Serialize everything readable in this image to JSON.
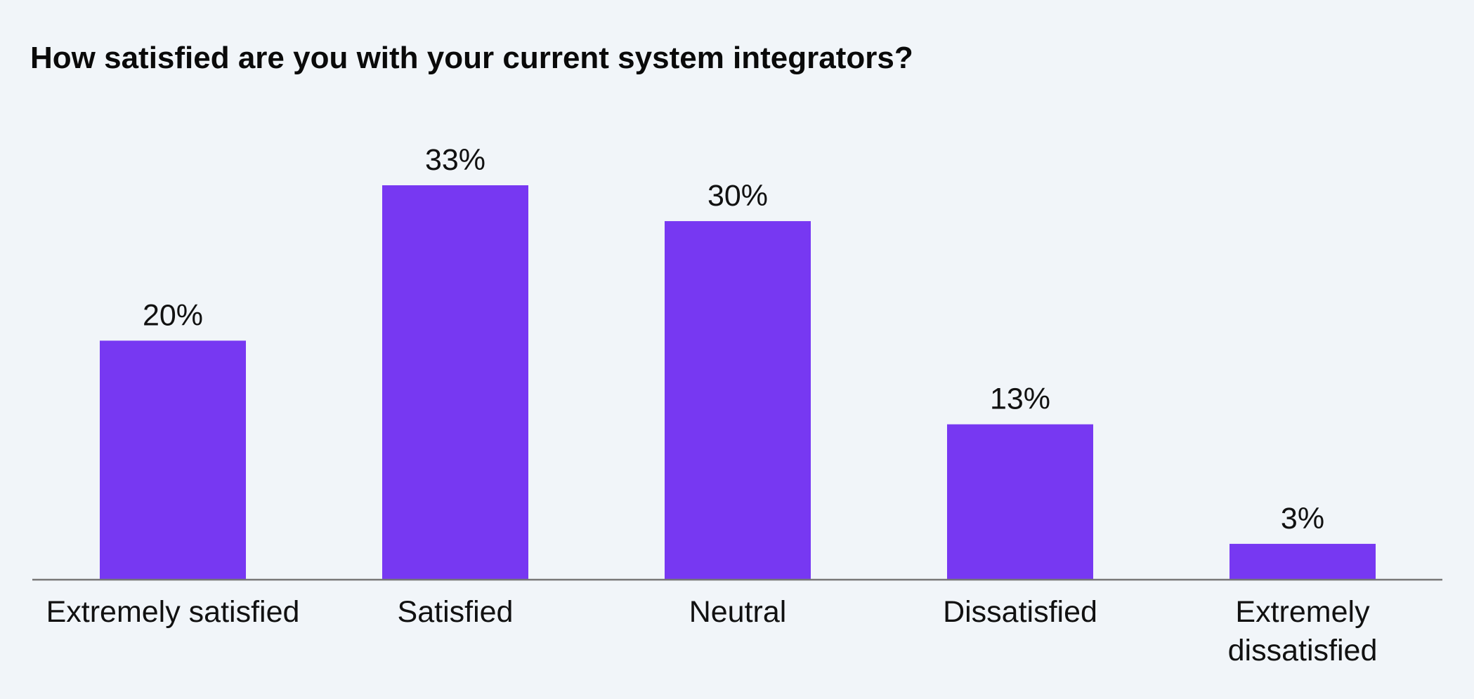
{
  "chart_data": {
    "type": "bar",
    "title": "How satisfied are you with your current system integrators?",
    "categories": [
      "Extremely satisfied",
      "Satisfied",
      "Neutral",
      "Dissatisfied",
      "Extremely dissatisfied"
    ],
    "category_lines": [
      [
        "Extremely satisfied"
      ],
      [
        "Satisfied"
      ],
      [
        "Neutral"
      ],
      [
        "Dissatisfied"
      ],
      [
        "Extremely",
        "dissatisfied"
      ]
    ],
    "values": [
      20,
      33,
      30,
      13,
      3
    ],
    "value_labels": [
      "20%",
      "33%",
      "30%",
      "13%",
      "3%"
    ],
    "xlabel": "",
    "ylabel": "",
    "ylim": [
      0,
      33
    ],
    "grid": false,
    "legend": "none",
    "colors": {
      "bar": "#7738f2",
      "axis": "#777777",
      "background": "#f1f5f9"
    }
  }
}
